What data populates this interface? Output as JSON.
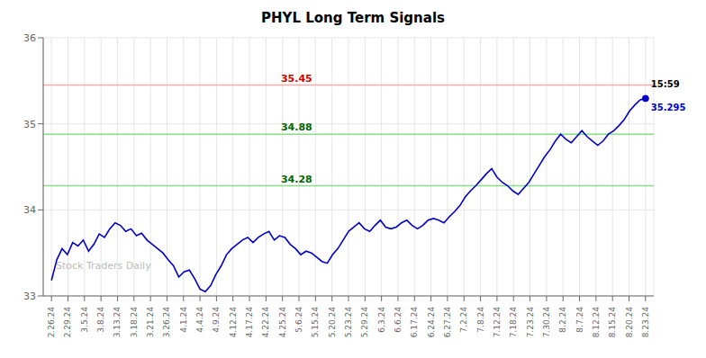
{
  "chart_data": {
    "type": "line",
    "title": "PHYL Long Term Signals",
    "color": "#0000cc",
    "grid": true,
    "x": [
      0,
      0.3214,
      0.6429,
      0.9643,
      1.2857,
      1.6071,
      1.9286,
      2.25,
      2.5714,
      2.8929,
      3.2143,
      3.5357,
      3.8571,
      4.1786,
      4.5,
      4.8214,
      5.1429,
      5.4643,
      5.7857,
      6.1071,
      6.4286,
      6.75,
      7.0714,
      7.3929,
      7.7143,
      8.0357,
      8.3571,
      8.6786,
      9,
      9.3214,
      9.6429,
      9.9643,
      10.2857,
      10.6071,
      10.9286,
      11.25,
      11.5714,
      11.8929,
      12.2143,
      12.5357,
      12.8571,
      13.1786,
      13.5,
      13.8214,
      14.1429,
      14.4643,
      14.7857,
      15.1071,
      15.4286,
      15.75,
      16.0714,
      16.3929,
      16.7143,
      17.0357,
      17.3571,
      17.6786,
      18,
      18.3214,
      18.6429,
      18.9643,
      19.2857,
      19.6071,
      19.9286,
      20.25,
      20.5714,
      20.8929,
      21.2143,
      21.5357,
      21.8571,
      22.1786,
      22.5,
      22.8214,
      23.1429,
      23.4643,
      23.7857,
      24.1071,
      24.4286,
      24.75,
      25.0714,
      25.3929,
      25.7143,
      26.0357,
      26.3571,
      26.6786,
      27,
      27.3214,
      27.6429,
      27.9643,
      28.2857,
      28.6071,
      28.9286,
      29.25,
      29.5714,
      29.8929,
      30.2143,
      30.5357,
      30.8571,
      31.1786,
      31.5,
      31.8214,
      32.1429,
      32.4643,
      32.7857,
      33.1071,
      33.4286,
      33.75,
      34.0714,
      34.3929,
      34.7143,
      35.0357,
      35.3571,
      35.6786,
      36
    ],
    "values": [
      33.18,
      33.42,
      33.55,
      33.48,
      33.62,
      33.58,
      33.65,
      33.52,
      33.6,
      33.72,
      33.68,
      33.78,
      33.85,
      33.82,
      33.75,
      33.78,
      33.7,
      33.73,
      33.65,
      33.6,
      33.55,
      33.5,
      33.42,
      33.35,
      33.22,
      33.28,
      33.3,
      33.2,
      33.08,
      33.05,
      33.12,
      33.25,
      33.35,
      33.48,
      33.55,
      33.6,
      33.65,
      33.68,
      33.62,
      33.68,
      33.72,
      33.75,
      33.65,
      33.7,
      33.68,
      33.6,
      33.55,
      33.48,
      33.52,
      33.5,
      33.45,
      33.4,
      33.38,
      33.48,
      33.55,
      33.65,
      33.75,
      33.8,
      33.85,
      33.78,
      33.75,
      33.82,
      33.88,
      33.8,
      33.78,
      33.8,
      33.85,
      33.88,
      33.82,
      33.78,
      33.82,
      33.88,
      33.9,
      33.88,
      33.85,
      33.92,
      33.98,
      34.05,
      34.15,
      34.22,
      34.28,
      34.35,
      34.42,
      34.48,
      34.38,
      34.32,
      34.28,
      34.22,
      34.18,
      34.25,
      34.32,
      34.42,
      34.52,
      34.62,
      34.7,
      34.8,
      34.88,
      34.82,
      34.78,
      34.85,
      34.92,
      34.85,
      34.8,
      34.75,
      34.8,
      34.88,
      34.92,
      34.98,
      35.05,
      35.15,
      35.22,
      35.28,
      35.295
    ],
    "xlim": [
      -0.5,
      36.5
    ],
    "xticks": [
      {
        "value": 0,
        "label": "2.26.24"
      },
      {
        "value": 1,
        "label": "2.29.24"
      },
      {
        "value": 2,
        "label": "3.5.24"
      },
      {
        "value": 3,
        "label": "3.8.24"
      },
      {
        "value": 4,
        "label": "3.13.24"
      },
      {
        "value": 5,
        "label": "3.18.24"
      },
      {
        "value": 6,
        "label": "3.21.24"
      },
      {
        "value": 7,
        "label": "3.26.24"
      },
      {
        "value": 8,
        "label": "4.1.24"
      },
      {
        "value": 9,
        "label": "4.4.24"
      },
      {
        "value": 10,
        "label": "4.9.24"
      },
      {
        "value": 11,
        "label": "4.12.24"
      },
      {
        "value": 12,
        "label": "4.17.24"
      },
      {
        "value": 13,
        "label": "4.22.24"
      },
      {
        "value": 14,
        "label": "4.25.24"
      },
      {
        "value": 15,
        "label": "5.6.24"
      },
      {
        "value": 16,
        "label": "5.15.24"
      },
      {
        "value": 17,
        "label": "5.20.24"
      },
      {
        "value": 18,
        "label": "5.23.24"
      },
      {
        "value": 19,
        "label": "5.29.24"
      },
      {
        "value": 20,
        "label": "6.3.24"
      },
      {
        "value": 21,
        "label": "6.6.24"
      },
      {
        "value": 22,
        "label": "6.17.24"
      },
      {
        "value": 23,
        "label": "6.24.24"
      },
      {
        "value": 24,
        "label": "6.27.24"
      },
      {
        "value": 25,
        "label": "7.2.24"
      },
      {
        "value": 26,
        "label": "7.8.24"
      },
      {
        "value": 27,
        "label": "7.12.24"
      },
      {
        "value": 28,
        "label": "7.18.24"
      },
      {
        "value": 29,
        "label": "7.23.24"
      },
      {
        "value": 30,
        "label": "7.30.24"
      },
      {
        "value": 31,
        "label": "8.2.24"
      },
      {
        "value": 32,
        "label": "8.7.24"
      },
      {
        "value": 33,
        "label": "8.12.24"
      },
      {
        "value": 34,
        "label": "8.15.24"
      },
      {
        "value": 35,
        "label": "8.20.24"
      },
      {
        "value": 36,
        "label": "8.23.24"
      }
    ],
    "ylim": [
      33,
      36
    ],
    "yticks": [
      33,
      34,
      35,
      36
    ],
    "reference_lines": [
      {
        "value": 35.45,
        "color": "#ffaaaa",
        "label": "35.45",
        "label_color": "#cc0000"
      },
      {
        "value": 34.88,
        "color": "#88dd88",
        "label": "34.88",
        "label_color": "#006600"
      },
      {
        "value": 34.28,
        "color": "#88dd88",
        "label": "34.28",
        "label_color": "#006600"
      }
    ],
    "annotations": [
      {
        "text": "15:59",
        "color": "#000000"
      },
      {
        "text": "35.295",
        "color": "#0000cc"
      }
    ],
    "watermark": {
      "text": "Stock Traders Daily",
      "color": "#bbbbbb"
    }
  }
}
